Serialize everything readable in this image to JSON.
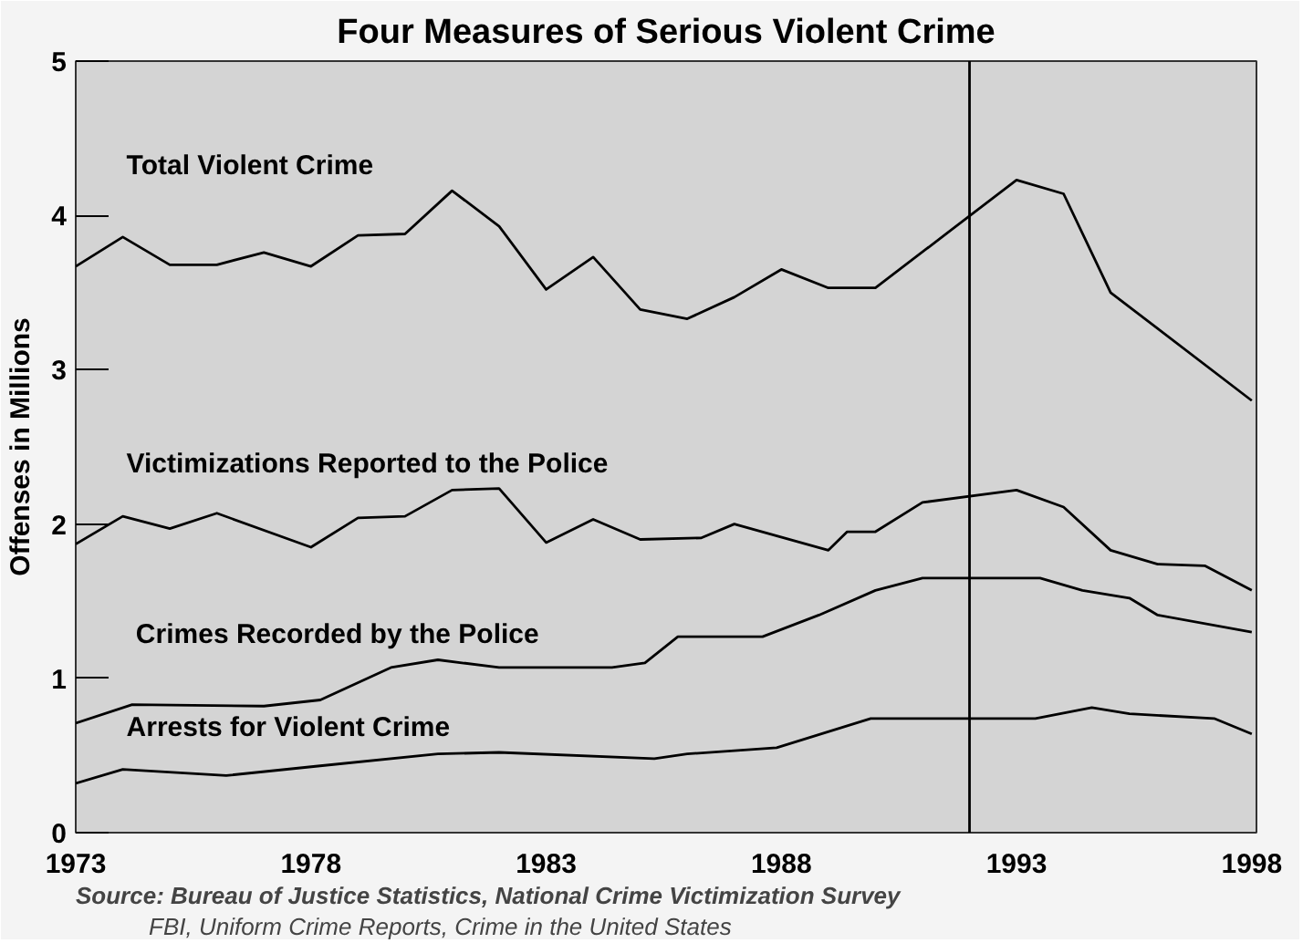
{
  "chart_data": {
    "type": "line",
    "title": "Four Measures of Serious Violent Crime",
    "ylabel": "Offenses in Millions",
    "xlim": [
      1973,
      1998.1
    ],
    "xticks": [
      1973,
      1978,
      1983,
      1988,
      1993,
      1998
    ],
    "ylim": [
      0,
      5
    ],
    "yticks": [
      0,
      1,
      2,
      3,
      4,
      5
    ],
    "grid": false,
    "legend": false,
    "marker": "none",
    "line_style": "solid",
    "series": [
      {
        "name": "Total Violent Crime",
        "color": "#000000",
        "x": [
          1973,
          1974,
          1975,
          1976,
          1977,
          1978,
          1979,
          1980,
          1981,
          1982,
          1983,
          1984,
          1985,
          1986,
          1987,
          1988,
          1989,
          1990,
          1993,
          1994,
          1995,
          1998
        ],
        "values": [
          3.67,
          3.86,
          3.68,
          3.68,
          3.76,
          3.67,
          3.87,
          3.88,
          4.16,
          3.93,
          3.52,
          3.73,
          3.39,
          3.33,
          3.47,
          3.65,
          3.53,
          3.53,
          4.23,
          4.14,
          3.5,
          2.8
        ]
      },
      {
        "name": "Victimizations Reported to the Police",
        "color": "#000000",
        "x": [
          1973,
          1974,
          1975,
          1976,
          1978,
          1979,
          1980,
          1981,
          1982,
          1983,
          1984,
          1985,
          1986.3,
          1987,
          1989,
          1989.4,
          1990,
          1991,
          1993,
          1994,
          1995,
          1996,
          1997,
          1998
        ],
        "values": [
          1.87,
          2.05,
          1.97,
          2.07,
          1.85,
          2.04,
          2.05,
          2.22,
          2.23,
          1.88,
          2.03,
          1.9,
          1.91,
          2.0,
          1.83,
          1.95,
          1.95,
          2.14,
          2.22,
          2.11,
          1.83,
          1.74,
          1.73,
          1.57
        ]
      },
      {
        "name": "Crimes Recorded by the Police",
        "color": "#000000",
        "x": [
          1973,
          1974.2,
          1977,
          1978.2,
          1979.7,
          1980.7,
          1982,
          1984.4,
          1985.1,
          1985.8,
          1987.6,
          1988.8,
          1990,
          1991,
          1993.5,
          1994.4,
          1995.4,
          1996,
          1998
        ],
        "values": [
          0.71,
          0.83,
          0.82,
          0.86,
          1.07,
          1.12,
          1.07,
          1.07,
          1.1,
          1.27,
          1.27,
          1.41,
          1.57,
          1.65,
          1.65,
          1.57,
          1.52,
          1.41,
          1.3
        ]
      },
      {
        "name": "Arrests for Violent Crime",
        "color": "#000000",
        "x": [
          1973,
          1974,
          1976.2,
          1978.1,
          1980.7,
          1982,
          1985.3,
          1986,
          1987.9,
          1989.9,
          1993.4,
          1994.6,
          1995.4,
          1997.2,
          1998
        ],
        "values": [
          0.32,
          0.41,
          0.37,
          0.43,
          0.51,
          0.52,
          0.48,
          0.51,
          0.55,
          0.74,
          0.74,
          0.81,
          0.77,
          0.74,
          0.64
        ]
      }
    ],
    "ref_lines": [
      {
        "axis": "x",
        "value": 1992,
        "color": "#000000"
      }
    ],
    "annotations": [
      "Source:  Bureau of Justice Statistics, National Crime Victimization Survey",
      "FBI, Uniform Crime Reports, Crime in the United States"
    ]
  }
}
